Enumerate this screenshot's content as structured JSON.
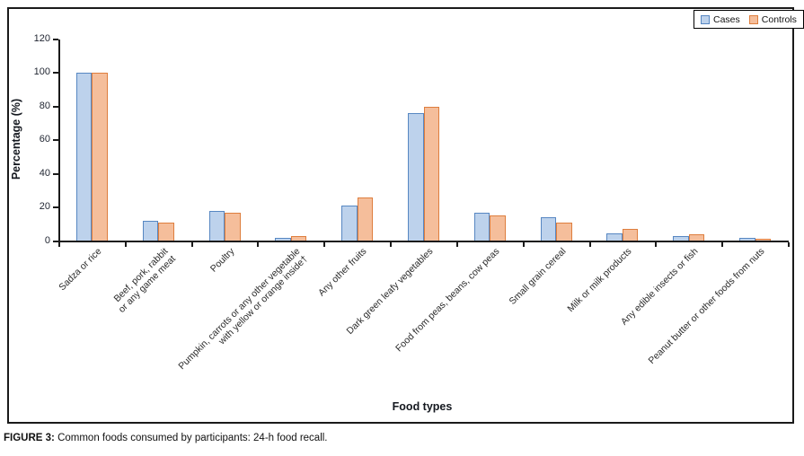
{
  "figure": {
    "caption_label": "FIGURE 3:",
    "caption_text": " Common foods consumed by participants: 24-h food recall."
  },
  "legend": {
    "cases_label": "Cases",
    "controls_label": "Controls"
  },
  "chart_data": {
    "type": "bar",
    "title": "",
    "xlabel": "Food types",
    "ylabel": "Percentage (%)",
    "ylim": [
      0,
      120
    ],
    "yticks": [
      0,
      20,
      40,
      60,
      80,
      100,
      120
    ],
    "grid": false,
    "legend_position": "top-right",
    "categories": [
      "Sadza or rice",
      "Beef, pork, rabbit or any game meat",
      "Poultry",
      "Pumpkin, carrots or any other vegetable with yellow or orange inside†",
      "Any other fruits",
      "Dark green leafy vegetables",
      "Food from peas, beans, cow peas",
      "Small grain cereal",
      "Milk or milk products",
      "Any edible insects or fish",
      "Peanut butter or other foods from nuts"
    ],
    "category_label_lines": [
      [
        "Sadza or rice"
      ],
      [
        "Beef, pork, rabbit",
        "or any game meat"
      ],
      [
        "Poultry"
      ],
      [
        "Pumpkin, carrots or any other vegetable",
        "with yellow or orange inside†"
      ],
      [
        "Any other fruits"
      ],
      [
        "Dark green leafy vegetables"
      ],
      [
        "Food from peas, beans, cow peas"
      ],
      [
        "Small grain cereal"
      ],
      [
        "Milk or milk products"
      ],
      [
        "Any edible insects or fish"
      ],
      [
        "Peanut butter or other foods from nuts"
      ]
    ],
    "series": [
      {
        "name": "Cases",
        "fill": "#BDD2EC",
        "border": "#5787C2",
        "values": [
          100,
          12,
          18,
          2,
          21,
          76,
          17,
          14,
          4.5,
          3,
          2
        ]
      },
      {
        "name": "Controls",
        "fill": "#F5BE9B",
        "border": "#DE7E3E",
        "values": [
          100,
          11,
          17,
          3,
          26,
          80,
          15.5,
          11,
          7,
          4,
          1.5
        ]
      }
    ]
  }
}
